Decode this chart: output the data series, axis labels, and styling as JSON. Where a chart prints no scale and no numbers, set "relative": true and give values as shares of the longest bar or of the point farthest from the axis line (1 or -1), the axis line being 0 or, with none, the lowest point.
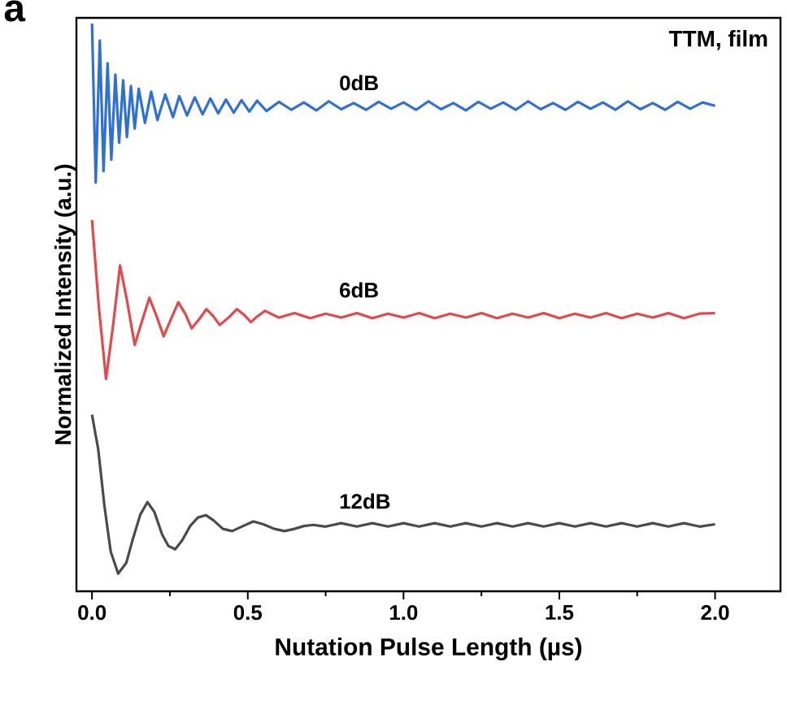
{
  "chart_data": {
    "type": "line",
    "relative": true,
    "xlabel": "Nutation Pulse Length (µs)",
    "ylabel": "Normalized Intensity (a.u.)",
    "annotations": [
      "a",
      "TTM, film"
    ],
    "xlim": [
      -0.05,
      2.21
    ],
    "xticks": [
      {
        "value": 0,
        "label": "0.0"
      },
      {
        "value": 0.5,
        "label": "0.5"
      },
      {
        "value": 1,
        "label": "1.0"
      },
      {
        "value": 1.5,
        "label": "1.5"
      },
      {
        "value": 2,
        "label": "2.0"
      }
    ],
    "series": [
      {
        "name": "0dB",
        "color": "#2f6fd8",
        "x": [
          0,
          0.012,
          0.025,
          0.037,
          0.05,
          0.062,
          0.075,
          0.087,
          0.1,
          0.112,
          0.125,
          0.137,
          0.15,
          0.17,
          0.19,
          0.21,
          0.235,
          0.26,
          0.28,
          0.305,
          0.33,
          0.355,
          0.38,
          0.405,
          0.43,
          0.455,
          0.48,
          0.505,
          0.53,
          0.56,
          0.6,
          0.64,
          0.68,
          0.72,
          0.76,
          0.8,
          0.84,
          0.88,
          0.92,
          0.96,
          1.0,
          1.04,
          1.08,
          1.12,
          1.16,
          1.2,
          1.24,
          1.28,
          1.32,
          1.36,
          1.4,
          1.44,
          1.48,
          1.52,
          1.56,
          1.6,
          1.64,
          1.68,
          1.72,
          1.76,
          1.8,
          1.84,
          1.88,
          1.92,
          1.96,
          2.0
        ],
        "values": [
          1.0,
          0.72,
          0.97,
          0.74,
          0.93,
          0.76,
          0.91,
          0.79,
          0.9,
          0.8,
          0.89,
          0.815,
          0.885,
          0.825,
          0.88,
          0.83,
          0.875,
          0.835,
          0.872,
          0.838,
          0.87,
          0.84,
          0.868,
          0.842,
          0.866,
          0.843,
          0.865,
          0.845,
          0.864,
          0.846,
          0.862,
          0.848,
          0.861,
          0.847,
          0.863,
          0.849,
          0.86,
          0.848,
          0.862,
          0.85,
          0.861,
          0.848,
          0.863,
          0.849,
          0.86,
          0.847,
          0.862,
          0.85,
          0.861,
          0.848,
          0.863,
          0.849,
          0.86,
          0.848,
          0.862,
          0.85,
          0.861,
          0.848,
          0.863,
          0.849,
          0.86,
          0.848,
          0.862,
          0.85,
          0.861,
          0.855
        ]
      },
      {
        "name": "6dB",
        "color": "#e5474b",
        "x": [
          0,
          0.022,
          0.045,
          0.068,
          0.09,
          0.113,
          0.137,
          0.16,
          0.184,
          0.207,
          0.23,
          0.254,
          0.277,
          0.3,
          0.32,
          0.345,
          0.367,
          0.39,
          0.41,
          0.44,
          0.465,
          0.49,
          0.51,
          0.53,
          0.555,
          0.6,
          0.65,
          0.7,
          0.75,
          0.8,
          0.85,
          0.9,
          0.95,
          1.0,
          1.05,
          1.1,
          1.15,
          1.2,
          1.25,
          1.3,
          1.35,
          1.4,
          1.45,
          1.5,
          1.55,
          1.6,
          1.65,
          1.7,
          1.75,
          1.8,
          1.85,
          1.9,
          1.95,
          2.0
        ],
        "values": [
          0.654,
          0.5,
          0.374,
          0.47,
          0.574,
          0.51,
          0.434,
          0.475,
          0.517,
          0.485,
          0.449,
          0.48,
          0.509,
          0.488,
          0.463,
          0.48,
          0.497,
          0.484,
          0.469,
          0.483,
          0.497,
          0.486,
          0.474,
          0.484,
          0.494,
          0.482,
          0.49,
          0.481,
          0.489,
          0.482,
          0.49,
          0.481,
          0.489,
          0.482,
          0.49,
          0.481,
          0.489,
          0.482,
          0.49,
          0.481,
          0.489,
          0.482,
          0.49,
          0.481,
          0.489,
          0.482,
          0.49,
          0.481,
          0.489,
          0.482,
          0.49,
          0.481,
          0.489,
          0.49
        ]
      },
      {
        "name": "12dB",
        "color": "#4a4a4a",
        "x": [
          0,
          0.02,
          0.04,
          0.06,
          0.084,
          0.11,
          0.13,
          0.155,
          0.178,
          0.2,
          0.225,
          0.245,
          0.267,
          0.29,
          0.315,
          0.34,
          0.366,
          0.39,
          0.42,
          0.45,
          0.485,
          0.518,
          0.55,
          0.585,
          0.618,
          0.65,
          0.68,
          0.71,
          0.75,
          0.8,
          0.85,
          0.9,
          0.95,
          1.0,
          1.05,
          1.1,
          1.15,
          1.2,
          1.25,
          1.3,
          1.35,
          1.4,
          1.45,
          1.5,
          1.55,
          1.6,
          1.65,
          1.7,
          1.75,
          1.8,
          1.85,
          1.9,
          1.95,
          2.0
        ],
        "values": [
          0.311,
          0.25,
          0.15,
          0.07,
          0.031,
          0.05,
          0.09,
          0.135,
          0.157,
          0.14,
          0.1,
          0.08,
          0.074,
          0.09,
          0.115,
          0.13,
          0.134,
          0.125,
          0.11,
          0.106,
          0.115,
          0.123,
          0.118,
          0.11,
          0.106,
          0.11,
          0.115,
          0.117,
          0.114,
          0.12,
          0.114,
          0.12,
          0.114,
          0.12,
          0.114,
          0.12,
          0.114,
          0.12,
          0.114,
          0.12,
          0.114,
          0.12,
          0.114,
          0.12,
          0.114,
          0.12,
          0.114,
          0.12,
          0.114,
          0.12,
          0.114,
          0.12,
          0.114,
          0.118
        ]
      }
    ]
  }
}
